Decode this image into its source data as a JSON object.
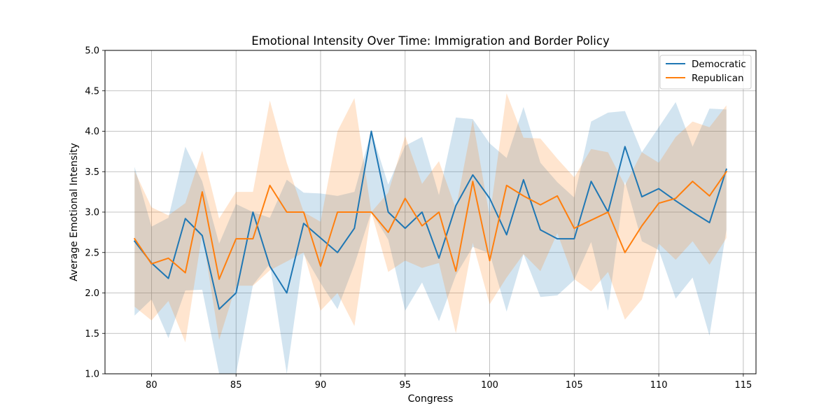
{
  "chart_data": {
    "type": "line",
    "title": "Emotional Intensity Over Time: Immigration and Border Policy",
    "xlabel": "Congress",
    "ylabel": "Average Emotional Intensity",
    "xlim": [
      77.25,
      115.75
    ],
    "ylim": [
      1.0,
      5.0
    ],
    "xticks": [
      80,
      85,
      90,
      95,
      100,
      105,
      110,
      115
    ],
    "yticks": [
      "1.0",
      "1.5",
      "2.0",
      "2.5",
      "3.0",
      "3.5",
      "4.0",
      "4.5",
      "5.0"
    ],
    "grid": true,
    "legend_position": "top-right",
    "x": [
      79,
      80,
      81,
      82,
      83,
      84,
      85,
      86,
      87,
      88,
      89,
      90,
      91,
      92,
      93,
      94,
      95,
      96,
      97,
      98,
      99,
      100,
      101,
      102,
      103,
      104,
      105,
      106,
      107,
      108,
      109,
      110,
      111,
      112,
      113,
      114
    ],
    "series": [
      {
        "name": "Democratic",
        "color": "#1f77b4",
        "values": [
          2.64,
          2.37,
          2.18,
          2.92,
          2.71,
          1.8,
          2.0,
          3.0,
          2.33,
          2.0,
          2.86,
          2.68,
          2.5,
          2.8,
          4.0,
          3.0,
          2.8,
          3.0,
          2.43,
          3.08,
          3.46,
          3.17,
          2.72,
          3.4,
          2.78,
          2.67,
          2.67,
          3.38,
          3.0,
          3.81,
          3.19,
          3.29,
          3.14,
          3.0,
          2.87,
          3.53
        ],
        "lower": [
          1.72,
          1.92,
          1.44,
          2.03,
          2.04,
          1.0,
          0.9,
          2.1,
          2.36,
          0.82,
          2.48,
          2.12,
          1.8,
          2.35,
          3.0,
          2.66,
          1.78,
          2.13,
          1.65,
          2.22,
          2.57,
          2.49,
          1.77,
          2.48,
          1.95,
          1.97,
          2.16,
          2.63,
          1.78,
          3.38,
          2.64,
          2.53,
          1.93,
          2.19,
          1.47,
          2.78
        ],
        "upper": [
          3.56,
          2.82,
          2.93,
          3.81,
          3.38,
          2.61,
          3.1,
          3.0,
          2.93,
          3.4,
          3.24,
          3.23,
          3.2,
          3.25,
          4.0,
          3.34,
          3.82,
          3.93,
          3.21,
          4.17,
          4.15,
          3.85,
          3.67,
          4.3,
          3.61,
          3.37,
          3.18,
          4.12,
          4.23,
          4.25,
          3.74,
          4.05,
          4.36,
          3.81,
          4.28,
          4.27
        ]
      },
      {
        "name": "Republican",
        "color": "#ff7f0e",
        "values": [
          2.67,
          2.36,
          2.43,
          2.25,
          3.25,
          2.17,
          2.67,
          2.67,
          3.33,
          3.0,
          3.0,
          2.33,
          3.0,
          3.0,
          3.0,
          2.75,
          3.17,
          2.83,
          3.0,
          2.27,
          3.38,
          2.4,
          3.33,
          3.2,
          3.09,
          3.2,
          2.8,
          2.9,
          3.0,
          2.5,
          2.83,
          3.11,
          3.17,
          3.38,
          3.2,
          3.5
        ],
        "lower": [
          1.83,
          1.66,
          1.9,
          1.39,
          2.74,
          1.42,
          2.09,
          2.09,
          2.28,
          2.39,
          2.5,
          1.78,
          2.0,
          1.59,
          3.0,
          2.26,
          2.4,
          2.31,
          2.37,
          1.5,
          2.62,
          1.86,
          2.19,
          2.48,
          2.27,
          2.74,
          2.17,
          2.02,
          2.26,
          1.67,
          1.92,
          2.61,
          2.41,
          2.64,
          2.35,
          2.68
        ],
        "upper": [
          3.51,
          3.06,
          2.96,
          3.11,
          3.76,
          2.92,
          3.25,
          3.25,
          4.38,
          3.61,
          3.0,
          2.88,
          4.0,
          4.41,
          3.0,
          3.24,
          3.94,
          3.35,
          3.63,
          3.04,
          4.14,
          2.94,
          4.47,
          3.92,
          3.91,
          3.66,
          3.43,
          3.78,
          3.74,
          3.33,
          3.74,
          3.61,
          3.93,
          4.12,
          4.05,
          4.32
        ]
      }
    ]
  }
}
